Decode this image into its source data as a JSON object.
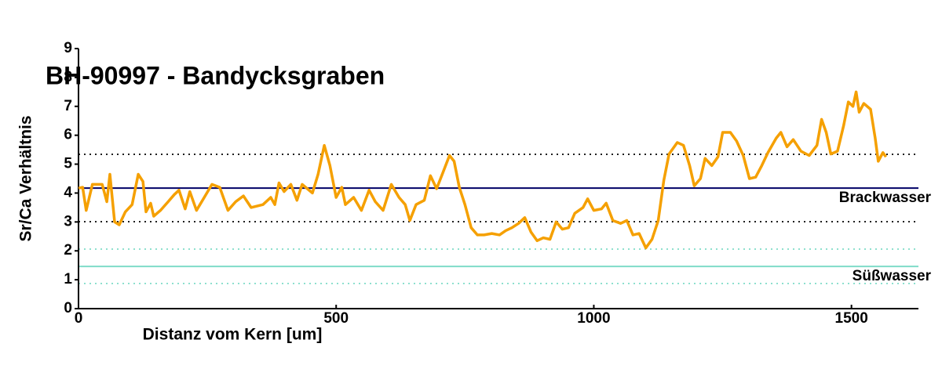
{
  "chart_data": {
    "type": "line",
    "title": "BH-90997 - Bandycksgraben",
    "x_label": "Distanz vom Kern [um]",
    "y_label": "Sr/Ca Verhältnis",
    "xlim": [
      0,
      1630
    ],
    "xticks": [
      0,
      500,
      1000,
      1500
    ],
    "ylim": [
      0,
      9
    ],
    "yticks": [
      0,
      1,
      2,
      3,
      4,
      5,
      6,
      7,
      8,
      9
    ],
    "grid": false,
    "reference_lines": [
      {
        "value": 4.17,
        "color": "#000066",
        "style": "solid",
        "label": "Brackwasser"
      },
      {
        "value": 5.34,
        "color": "#000000",
        "style": "dotted"
      },
      {
        "value": 3.01,
        "color": "#000000",
        "style": "dotted"
      },
      {
        "value": 1.46,
        "color": "#7fdcc8",
        "style": "solid",
        "label": "Süßwasser"
      },
      {
        "value": 2.06,
        "color": "#7fdcc8",
        "style": "dotted"
      },
      {
        "value": 0.87,
        "color": "#7fdcc8",
        "style": "dotted"
      }
    ],
    "series": [
      {
        "color": "#f5a000",
        "x": [
          0,
          8,
          15,
          27,
          46,
          55,
          61,
          70,
          79,
          91,
          104,
          116,
          125,
          131,
          140,
          146,
          159,
          174,
          186,
          195,
          207,
          216,
          229,
          244,
          259,
          274,
          290,
          305,
          320,
          335,
          358,
          373,
          381,
          389,
          399,
          412,
          424,
          434,
          454,
          465,
          477,
          488,
          500,
          511,
          518,
          534,
          549,
          564,
          576,
          591,
          607,
          622,
          634,
          643,
          655,
          671,
          683,
          695,
          707,
          720,
          729,
          739,
          750,
          762,
          774,
          787,
          802,
          817,
          829,
          841,
          854,
          866,
          878,
          890,
          902,
          915,
          927,
          939,
          951,
          963,
          979,
          988,
          1000,
          1015,
          1024,
          1037,
          1052,
          1064,
          1076,
          1088,
          1101,
          1113,
          1125,
          1136,
          1146,
          1162,
          1174,
          1186,
          1195,
          1207,
          1216,
          1229,
          1241,
          1250,
          1265,
          1277,
          1290,
          1302,
          1314,
          1326,
          1338,
          1354,
          1363,
          1375,
          1387,
          1402,
          1418,
          1433,
          1442,
          1451,
          1460,
          1473,
          1485,
          1494,
          1503,
          1509,
          1515,
          1524,
          1537,
          1546,
          1552,
          1561,
          1567
        ],
        "values": [
          4.17,
          4.2,
          3.4,
          4.3,
          4.3,
          3.7,
          4.65,
          3.0,
          2.9,
          3.35,
          3.6,
          4.65,
          4.4,
          3.35,
          3.65,
          3.2,
          3.4,
          3.7,
          3.95,
          4.1,
          3.45,
          4.05,
          3.4,
          3.85,
          4.3,
          4.2,
          3.4,
          3.7,
          3.9,
          3.5,
          3.6,
          3.85,
          3.6,
          4.35,
          4.05,
          4.3,
          3.75,
          4.3,
          4.0,
          4.65,
          5.65,
          4.95,
          3.85,
          4.2,
          3.6,
          3.85,
          3.4,
          4.1,
          3.7,
          3.4,
          4.3,
          3.85,
          3.6,
          3.05,
          3.6,
          3.75,
          4.6,
          4.15,
          4.7,
          5.3,
          5.1,
          4.2,
          3.6,
          2.8,
          2.55,
          2.55,
          2.6,
          2.55,
          2.7,
          2.8,
          2.95,
          3.15,
          2.65,
          2.35,
          2.45,
          2.4,
          3.0,
          2.75,
          2.8,
          3.3,
          3.5,
          3.8,
          3.4,
          3.45,
          3.65,
          3.05,
          2.95,
          3.05,
          2.55,
          2.6,
          2.1,
          2.4,
          3.05,
          4.45,
          5.35,
          5.75,
          5.65,
          4.95,
          4.25,
          4.5,
          5.2,
          4.95,
          5.25,
          6.1,
          6.1,
          5.8,
          5.3,
          4.5,
          4.55,
          4.95,
          5.4,
          5.9,
          6.1,
          5.6,
          5.85,
          5.45,
          5.3,
          5.65,
          6.55,
          6.1,
          5.35,
          5.45,
          6.35,
          7.15,
          7.0,
          7.5,
          6.8,
          7.1,
          6.9,
          5.9,
          5.1,
          5.4,
          5.25
        ]
      }
    ]
  }
}
